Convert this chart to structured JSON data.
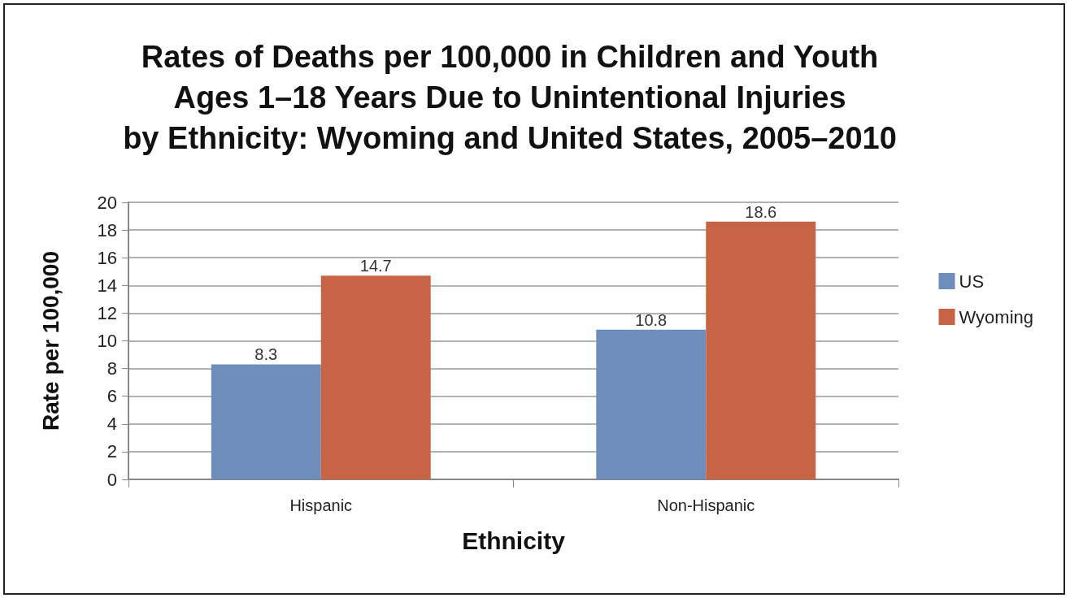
{
  "chart_data": {
    "type": "bar",
    "title": "Rates of Deaths per 100,000 in Children and Youth\nAges 1–18 Years Due to Unintentional Injuries\nby Ethnicity: Wyoming and United States, 2005–2010",
    "xlabel": "Ethnicity",
    "ylabel": "Rate per 100,000",
    "categories": [
      "Hispanic",
      "Non-Hispanic"
    ],
    "series": [
      {
        "name": "US",
        "color": "#6f8dbb",
        "values": [
          8.3,
          10.8
        ]
      },
      {
        "name": "Wyoming",
        "color": "#c86446",
        "values": [
          14.7,
          18.6
        ]
      }
    ],
    "ylim": [
      0,
      20
    ],
    "yticks": [
      0,
      2,
      4,
      6,
      8,
      10,
      12,
      14,
      16,
      18,
      20
    ],
    "grid": "y",
    "legend": "right",
    "data_labels": true
  }
}
